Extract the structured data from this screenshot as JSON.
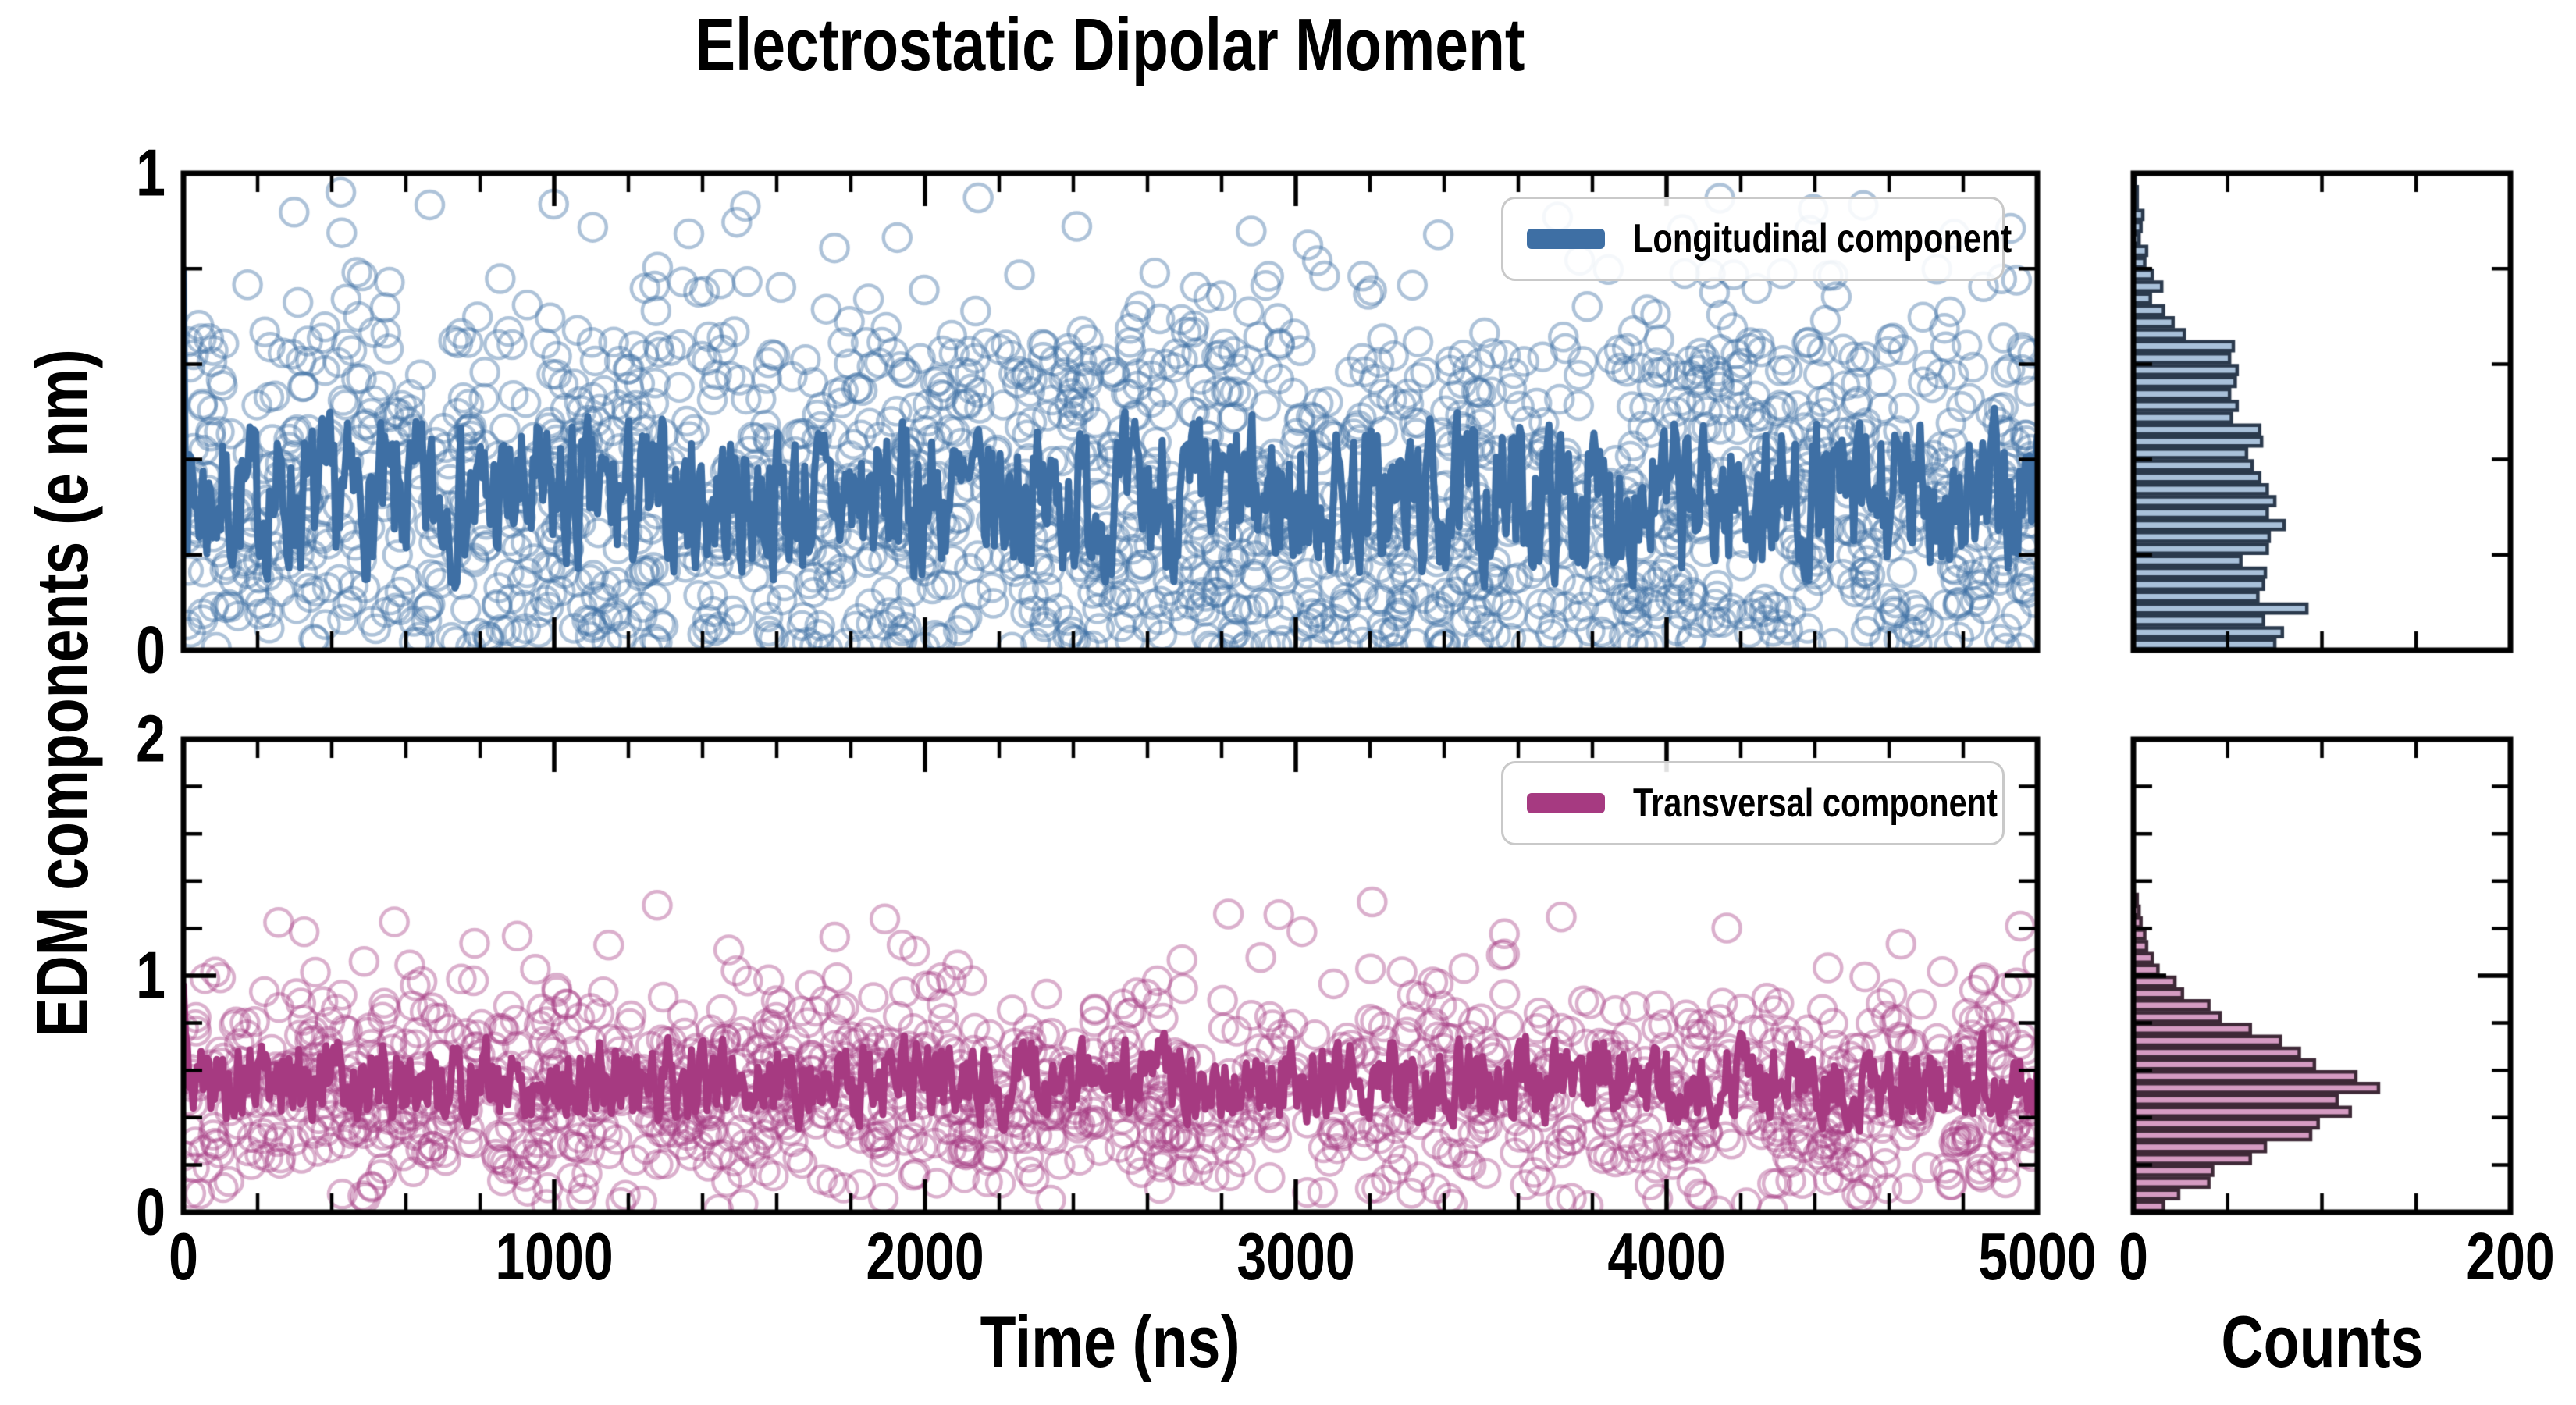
{
  "title": "Electrostatic Dipolar Moment",
  "ylabel": "EDM components (e nm)",
  "legend": {
    "top": "Longitudinal component",
    "bottom": "Transversal component"
  },
  "axes": {
    "x_main": {
      "label": "Time (ns)",
      "lim": [
        0,
        5000
      ],
      "major_ticks": [
        {
          "v": 0,
          "label": "0"
        },
        {
          "v": 1000,
          "label": "1000"
        },
        {
          "v": 2000,
          "label": "2000"
        },
        {
          "v": 3000,
          "label": "3000"
        },
        {
          "v": 4000,
          "label": "4000"
        },
        {
          "v": 5000,
          "label": "5000"
        }
      ],
      "minor_step": 200
    },
    "x_hist": {
      "label": "Counts",
      "lim": [
        0,
        200
      ],
      "major_ticks": [
        {
          "v": 0,
          "label": "0"
        },
        {
          "v": 200,
          "label": "200"
        }
      ],
      "minor_ticks": [
        50,
        100,
        150
      ]
    },
    "y_top": {
      "lim": [
        0,
        1
      ],
      "major_ticks": [
        {
          "v": 0,
          "label": "0"
        },
        {
          "v": 1,
          "label": "1"
        }
      ],
      "minor_ticks": [
        0.2,
        0.4,
        0.6,
        0.8
      ]
    },
    "y_bottom": {
      "lim": [
        0,
        2
      ],
      "major_ticks": [
        {
          "v": 0,
          "label": "0"
        },
        {
          "v": 1,
          "label": "1"
        },
        {
          "v": 2,
          "label": "2"
        }
      ],
      "minor_ticks": [
        0.2,
        0.4,
        0.6,
        0.8,
        1.2,
        1.4,
        1.6,
        1.8
      ]
    }
  },
  "colors": {
    "longitudinal_line": "#3e6fa4",
    "longitudinal_scatter": "rgba(62,111,164,0.42)",
    "longitudinal_hist_fill": "#a9c1da",
    "longitudinal_hist_edge": "#2b3a4d",
    "transversal_line": "#a63a81",
    "transversal_scatter": "rgba(166,58,129,0.40)",
    "transversal_hist_fill": "#d59bc2",
    "transversal_hist_edge": "#3e2937",
    "axis": "#000000",
    "legend_border": "#c9c9c9",
    "background": "#ffffff"
  },
  "chart_data": [
    {
      "type": "scatter",
      "panel": "top",
      "name": "Longitudinal component",
      "title": "Electrostatic Dipolar Moment",
      "xlabel": "Time (ns)",
      "ylabel": "EDM components (e nm)",
      "xlim": [
        0,
        5000
      ],
      "ylim": [
        0,
        1
      ],
      "scatter": {
        "n": 1840,
        "marker": "open-circle",
        "x_distribution": "uniform over 0-5000 ns",
        "y_distribution": "matches histogram counts below"
      },
      "line": {
        "label": "Longitudinal component",
        "mean": 0.315,
        "typical_range": [
          0.13,
          0.58
        ],
        "start_value": 0.8,
        "n": 950
      },
      "histogram": {
        "type": "bar",
        "orientation": "horizontal",
        "xlabel": "Counts",
        "xlim": [
          0,
          200
        ],
        "bin_start": 0,
        "bin_width": 0.025,
        "counts": [
          75,
          79,
          69,
          92,
          66,
          69,
          70,
          57,
          71,
          72,
          80,
          71,
          75,
          71,
          67,
          63,
          60,
          68,
          67,
          52,
          55,
          51,
          54,
          55,
          51,
          53,
          27,
          21,
          16,
          9,
          15,
          10,
          6,
          7,
          3,
          4,
          5,
          2,
          2,
          1
        ]
      }
    },
    {
      "type": "scatter",
      "panel": "bottom",
      "name": "Transversal component",
      "title": "Electrostatic Dipolar Moment",
      "xlabel": "Time (ns)",
      "ylabel": "EDM components (e nm)",
      "xlim": [
        0,
        5000
      ],
      "ylim": [
        0,
        2
      ],
      "scatter": {
        "n": 1420,
        "marker": "open-circle",
        "x_distribution": "uniform over 0-5000 ns",
        "y_distribution": "matches histogram counts below"
      },
      "line": {
        "label": "Transversal component",
        "mean": 0.555,
        "typical_range": [
          0.33,
          0.96
        ],
        "start_value": 0.96,
        "n": 950
      },
      "histogram": {
        "type": "bar",
        "orientation": "horizontal",
        "xlabel": "Counts",
        "xlim": [
          0,
          200
        ],
        "bin_start": 0,
        "bin_width": 0.05,
        "counts": [
          16,
          24,
          40,
          42,
          62,
          70,
          94,
          98,
          115,
          108,
          130,
          118,
          96,
          88,
          78,
          62,
          46,
          40,
          26,
          22,
          13,
          10,
          7,
          6,
          4,
          3,
          2,
          0,
          0,
          0,
          0,
          0,
          0,
          0,
          0,
          0,
          0,
          0,
          0,
          0
        ]
      }
    }
  ]
}
